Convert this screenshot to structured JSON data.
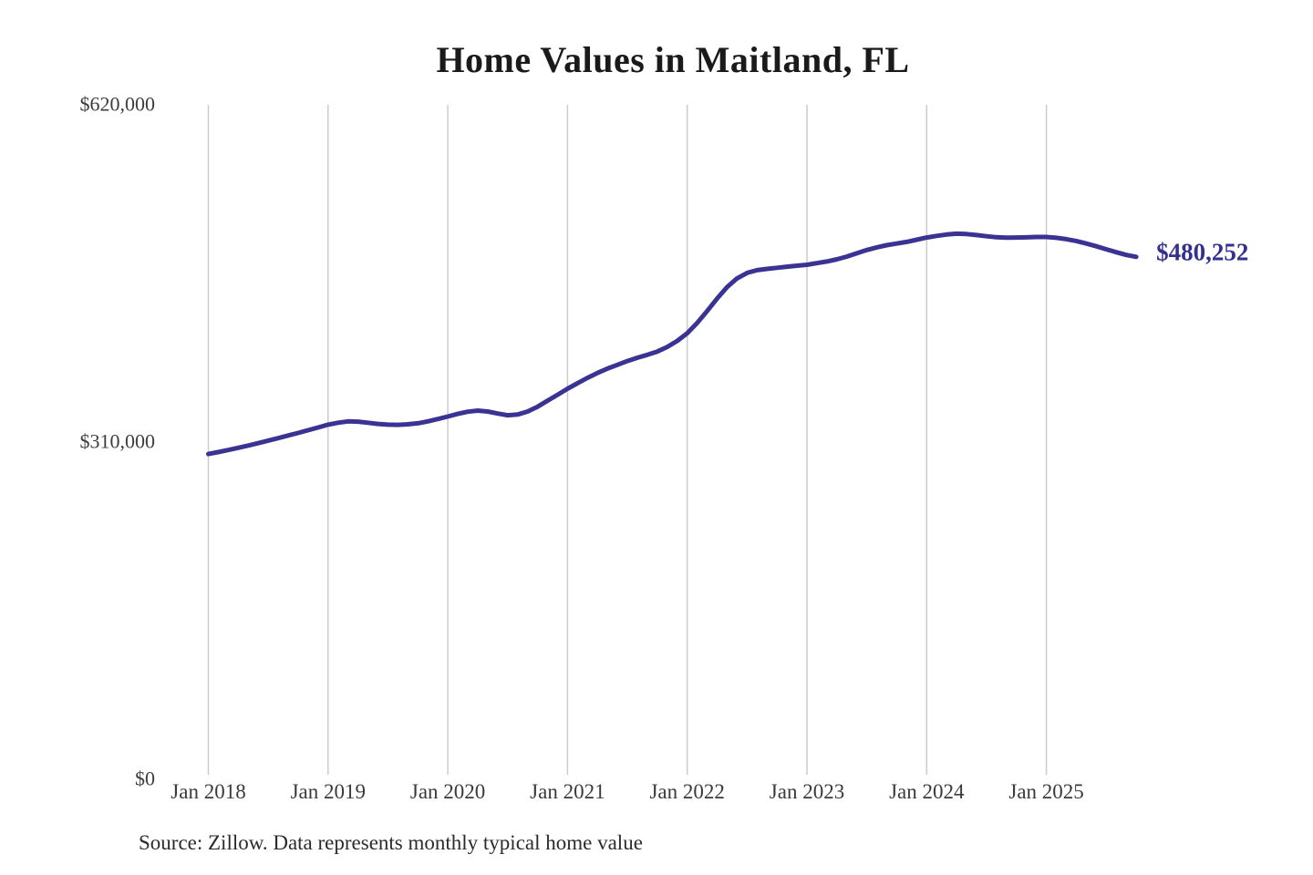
{
  "title": "Home Values in Maitland, FL",
  "source_note": "Source: Zillow. Data represents monthly typical home value",
  "colors": {
    "line": "#3b3394",
    "grid": "#cccccc",
    "title_text": "#1a1a1a",
    "axis_text": "#3d3d3d",
    "annotation_text": "#34308e"
  },
  "chart_data": {
    "type": "line",
    "title": "Home Values in Maitland, FL",
    "xlabel": "",
    "ylabel": "",
    "ylim": [
      0,
      620000
    ],
    "y_ticks": [
      {
        "value": 620000,
        "label": "$620,000"
      },
      {
        "value": 310000,
        "label": "$310,000"
      },
      {
        "value": 0,
        "label": "$0"
      }
    ],
    "x_tick_labels": [
      "Jan 2018",
      "Jan 2019",
      "Jan 2020",
      "Jan 2021",
      "Jan 2022",
      "Jan 2023",
      "Jan 2024",
      "Jan 2025"
    ],
    "grid": "vertical gridlines at each January tick",
    "legend_position": "none",
    "last_point_annotation": "$480,252",
    "last_value": 480252,
    "series": [
      {
        "name": "Typical home value (monthly)",
        "unit": "USD",
        "x_start_month": "2018-01",
        "x_end_month": "2025-10",
        "x_interval": "monthly",
        "values": [
          299000,
          300800,
          302700,
          304700,
          306800,
          309000,
          311300,
          313600,
          316000,
          318400,
          320900,
          323400,
          326000,
          327800,
          329000,
          328800,
          327800,
          326700,
          326000,
          325800,
          326300,
          327300,
          329000,
          331200,
          333500,
          335900,
          337900,
          338900,
          338100,
          336200,
          334600,
          335300,
          338100,
          342500,
          348000,
          353500,
          359000,
          364000,
          369000,
          373500,
          377500,
          381000,
          384500,
          387500,
          390200,
          393200,
          397500,
          403000,
          410000,
          419500,
          430500,
          442000,
          452500,
          460500,
          465500,
          468000,
          469200,
          470200,
          471200,
          472100,
          473000,
          474500,
          476000,
          478000,
          480500,
          483500,
          486500,
          489000,
          491000,
          492500,
          494000,
          496000,
          498000,
          499500,
          500800,
          501500,
          501200,
          500300,
          499200,
          498300,
          497900,
          498000,
          498200,
          498500,
          498500,
          497800,
          496500,
          494800,
          492500,
          490000,
          487200,
          484500,
          482000,
          480252
        ]
      }
    ]
  }
}
